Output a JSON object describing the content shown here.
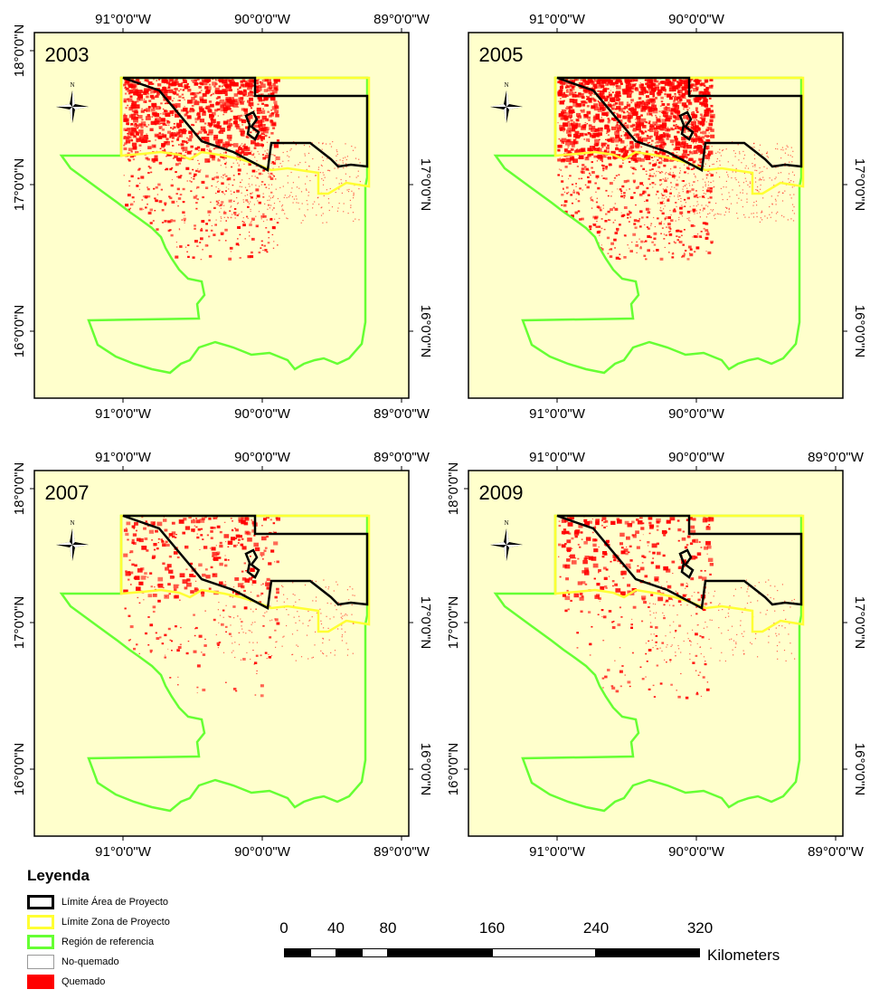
{
  "panels": [
    {
      "year": "2003",
      "burn_level": "heavy",
      "x_ticks_top": [
        "91°0'0\"W",
        "90°0'0\"W",
        "89°0'0\"W"
      ],
      "x_ticks_bottom": [
        "91°0'0\"W",
        "90°0'0\"W",
        "89°0'0\"W"
      ],
      "y_ticks_left": [
        "18°0'0\"N",
        "17°0'0\"N",
        "16°0'0\"N"
      ],
      "y_ticks_right": [
        "17°0'0\"N",
        "16°0'0\"N"
      ]
    },
    {
      "year": "2005",
      "burn_level": "very-heavy",
      "x_ticks_top": [
        "91°0'0\"W",
        "90°0'0\"W"
      ],
      "x_ticks_bottom": [
        "91°0'0\"W",
        "90°0'0\"W"
      ],
      "y_ticks_left": [],
      "y_ticks_right": [
        "17°0'0\"N",
        "16°0'0\"N"
      ]
    },
    {
      "year": "2007",
      "burn_level": "moderate",
      "x_ticks_top": [
        "91°0'0\"W",
        "90°0'0\"W",
        "89°0'0\"W"
      ],
      "x_ticks_bottom": [
        "91°0'0\"W",
        "90°0'0\"W",
        "89°0'0\"W"
      ],
      "y_ticks_left": [
        "18°0'0\"N",
        "17°0'0\"N",
        "16°0'0\"N"
      ],
      "y_ticks_right": [
        "17°0'0\"N",
        "16°0'0\"N"
      ]
    },
    {
      "year": "2009",
      "burn_level": "moderate",
      "x_ticks_top": [
        "91°0'0\"W",
        "90°0'0\"W",
        "89°0'0\"W"
      ],
      "x_ticks_bottom": [
        "91°0'0\"W",
        "90°0'0\"W",
        "89°0'0\"W"
      ],
      "y_ticks_left": [
        "18°0'0\"N",
        "17°0'0\"N",
        "16°0'0\"N"
      ],
      "y_ticks_right": [
        "17°0'0\"N",
        "16°0'0\"N"
      ]
    }
  ],
  "compass": {
    "label": "N",
    "icon": "north-arrow-icon"
  },
  "legend": {
    "title": "Leyenda",
    "items": [
      {
        "label": "Límite Área de Proyecto",
        "stroke": "#000000",
        "fill": "#ffffff"
      },
      {
        "label": "Límite Zona de Proyecto",
        "stroke": "#ffff33",
        "fill": "#ffffff"
      },
      {
        "label": "Región de referencia",
        "stroke": "#66ff33",
        "fill": "#ffffff"
      },
      {
        "label": "No-quemado",
        "stroke": "#999999",
        "fill": "#ffffff"
      },
      {
        "label": "Quemado",
        "stroke": "#ff0000",
        "fill": "#ff0000"
      }
    ]
  },
  "scale_bar": {
    "labels": [
      "0",
      "40",
      "80",
      "160",
      "240",
      "320"
    ],
    "unit": "Kilometers"
  },
  "colors": {
    "map_background": "#ffffcc",
    "burned": "#ff0000",
    "reference_region": "#66ff33",
    "project_zone": "#ffff33",
    "project_area": "#000000"
  }
}
